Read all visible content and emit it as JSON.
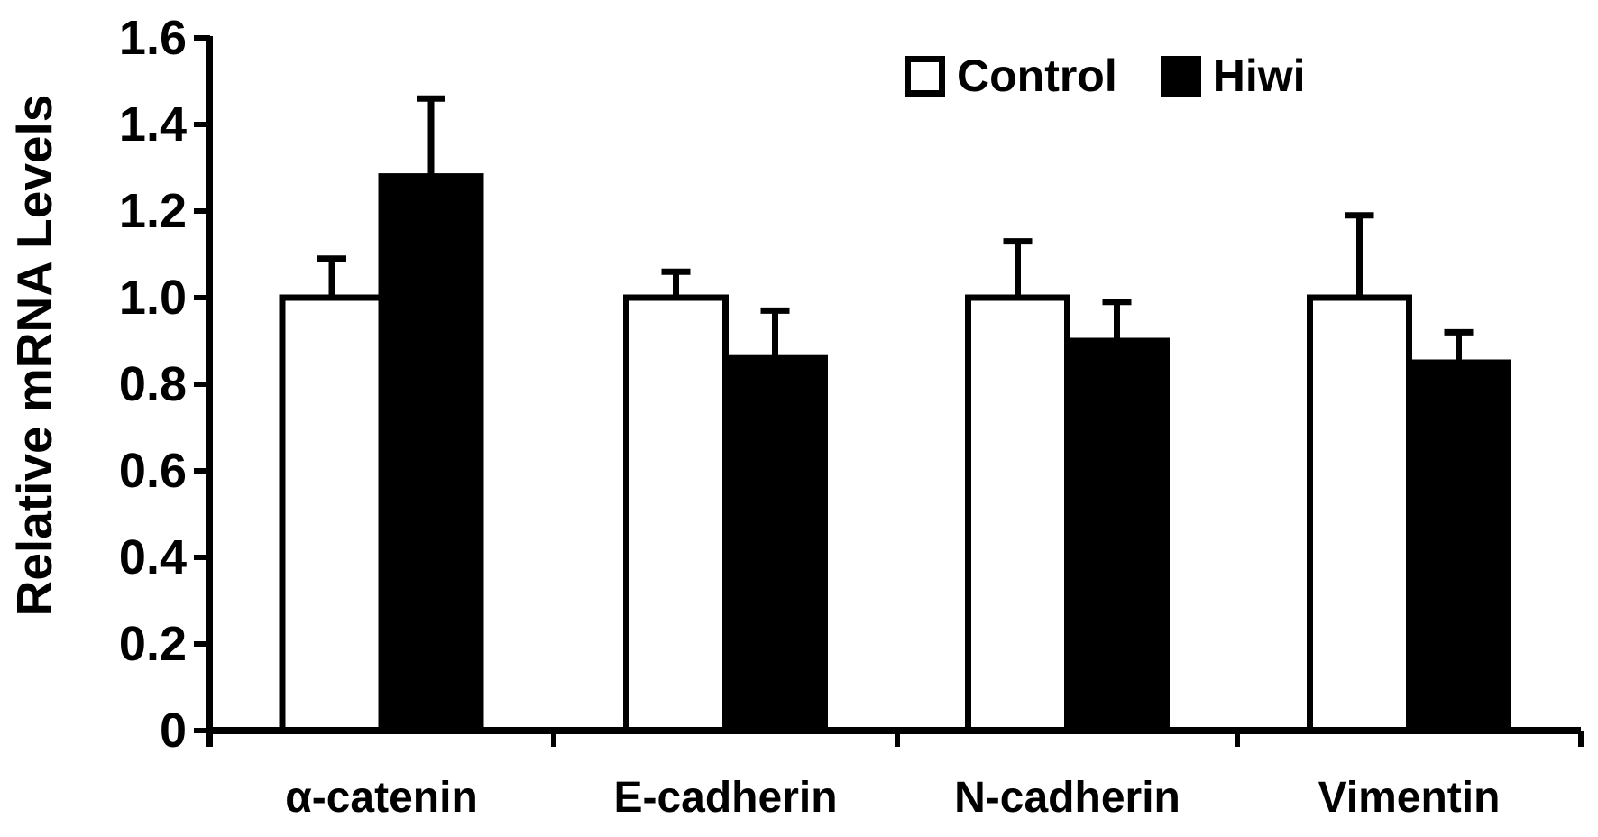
{
  "chart_data": {
    "type": "bar",
    "title": "",
    "xlabel": "",
    "ylabel": "Relative mRNA Levels",
    "categories": [
      "α-catenin",
      "E-cadherin",
      "N-cadherin",
      "Vimentin"
    ],
    "series": [
      {
        "name": "Control",
        "fill": "#ffffff",
        "outline": "#000000",
        "values": [
          1.0,
          1.0,
          1.0,
          1.0
        ],
        "errors_upper": [
          0.09,
          0.06,
          0.13,
          0.19
        ]
      },
      {
        "name": "Hiwi",
        "fill": "#000000",
        "outline": "#000000",
        "values": [
          1.28,
          0.86,
          0.9,
          0.85
        ],
        "errors_upper": [
          0.18,
          0.11,
          0.09,
          0.07
        ]
      }
    ],
    "ylim": [
      0,
      1.6
    ],
    "yticks": [
      0,
      0.2,
      0.4,
      0.6,
      0.8,
      1.0,
      1.2,
      1.4,
      1.6
    ],
    "ytick_labels": [
      "0",
      "0.2",
      "0.4",
      "0.6",
      "0.8",
      "1.0",
      "1.2",
      "1.4",
      "1.6"
    ],
    "error_bars": "upper-only",
    "grid": false,
    "legend_position": "top-right",
    "axis_color": "#000000",
    "background_color": "#ffffff"
  },
  "legend": {
    "control_label": "Control",
    "hiwi_label": "Hiwi"
  }
}
